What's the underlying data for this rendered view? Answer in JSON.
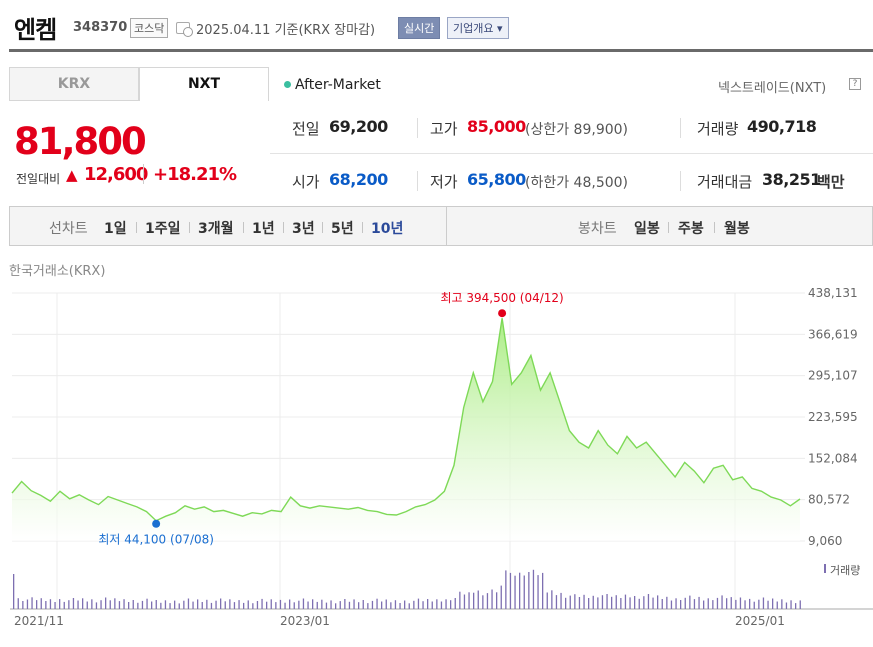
{
  "header": {
    "stock_name": "엔켐",
    "stock_code": "348370",
    "market_badge": "코스닥",
    "as_of": "2025.04.11 기준(KRX 장마감)",
    "realtime_btn": "실시간",
    "company_btn": "기업개요 ▾"
  },
  "tabs": {
    "krx": "KRX",
    "nxt": "NXT",
    "aftermarket": "After-Market",
    "nxt_name": "넥스트레이드(NXT)",
    "help": "?"
  },
  "price": {
    "current": "81,800",
    "change_label": "전일대비",
    "change_arrow": "▲",
    "change_value": "12,600",
    "change_pct": "+18.21%"
  },
  "stats": {
    "prev_close_label": "전일",
    "prev_close": "69,200",
    "high_label": "고가",
    "high": "85,000",
    "upper_limit": "(상한가 89,900)",
    "volume_label": "거래량",
    "volume": "490,718",
    "open_label": "시가",
    "open": "68,200",
    "low_label": "저가",
    "low": "65,800",
    "lower_limit": "(하한가 48,500)",
    "amount_label": "거래대금",
    "amount": "38,251",
    "amount_unit": "백만"
  },
  "period_bar": {
    "line_label": "선차트",
    "line_periods": [
      "1일",
      "1주일",
      "3개월",
      "1년",
      "3년",
      "5년",
      "10년"
    ],
    "selected": "10년",
    "candle_label": "봉차트",
    "candle_periods": [
      "일봉",
      "주봉",
      "월봉"
    ]
  },
  "exchange_label": "한국거래소(KRX)",
  "colors": {
    "up": "#e2001a",
    "down": "#0a5bc7",
    "line": "#7ed957",
    "volume": "#7d6fb1"
  },
  "chart_data": {
    "type": "area",
    "y_ticks": [
      "438,131",
      "366,619",
      "295,107",
      "223,595",
      "152,084",
      "80,572",
      "9,060"
    ],
    "ylim": [
      9060,
      438131
    ],
    "x_ticks": [
      "2021/11",
      "2023/01",
      "2025/01"
    ],
    "high_annotation": "최고 394,500 (04/12)",
    "low_annotation": "최저 44,100 (07/08)",
    "volume_legend": "거래량",
    "series": [
      {
        "values": [
          92000,
          112000,
          96000,
          88000,
          78000,
          95000,
          82000,
          89000,
          80000,
          72000,
          86000,
          80000,
          74000,
          68000,
          60000,
          44100,
          52000,
          58000,
          70000,
          64000,
          68000,
          60000,
          62000,
          57000,
          52000,
          58000,
          56000,
          62000,
          60000,
          85000,
          70000,
          66000,
          70000,
          68000,
          66000,
          64000,
          67000,
          62000,
          60000,
          55000,
          54000,
          60000,
          68000,
          72000,
          80000,
          95000,
          140000,
          240000,
          300000,
          250000,
          285000,
          394500,
          280000,
          300000,
          330000,
          270000,
          300000,
          250000,
          200000,
          180000,
          170000,
          200000,
          175000,
          160000,
          190000,
          170000,
          180000,
          160000,
          140000,
          120000,
          145000,
          130000,
          110000,
          135000,
          140000,
          115000,
          120000,
          100000,
          95000,
          85000,
          80000,
          70000,
          81800
        ]
      }
    ]
  }
}
